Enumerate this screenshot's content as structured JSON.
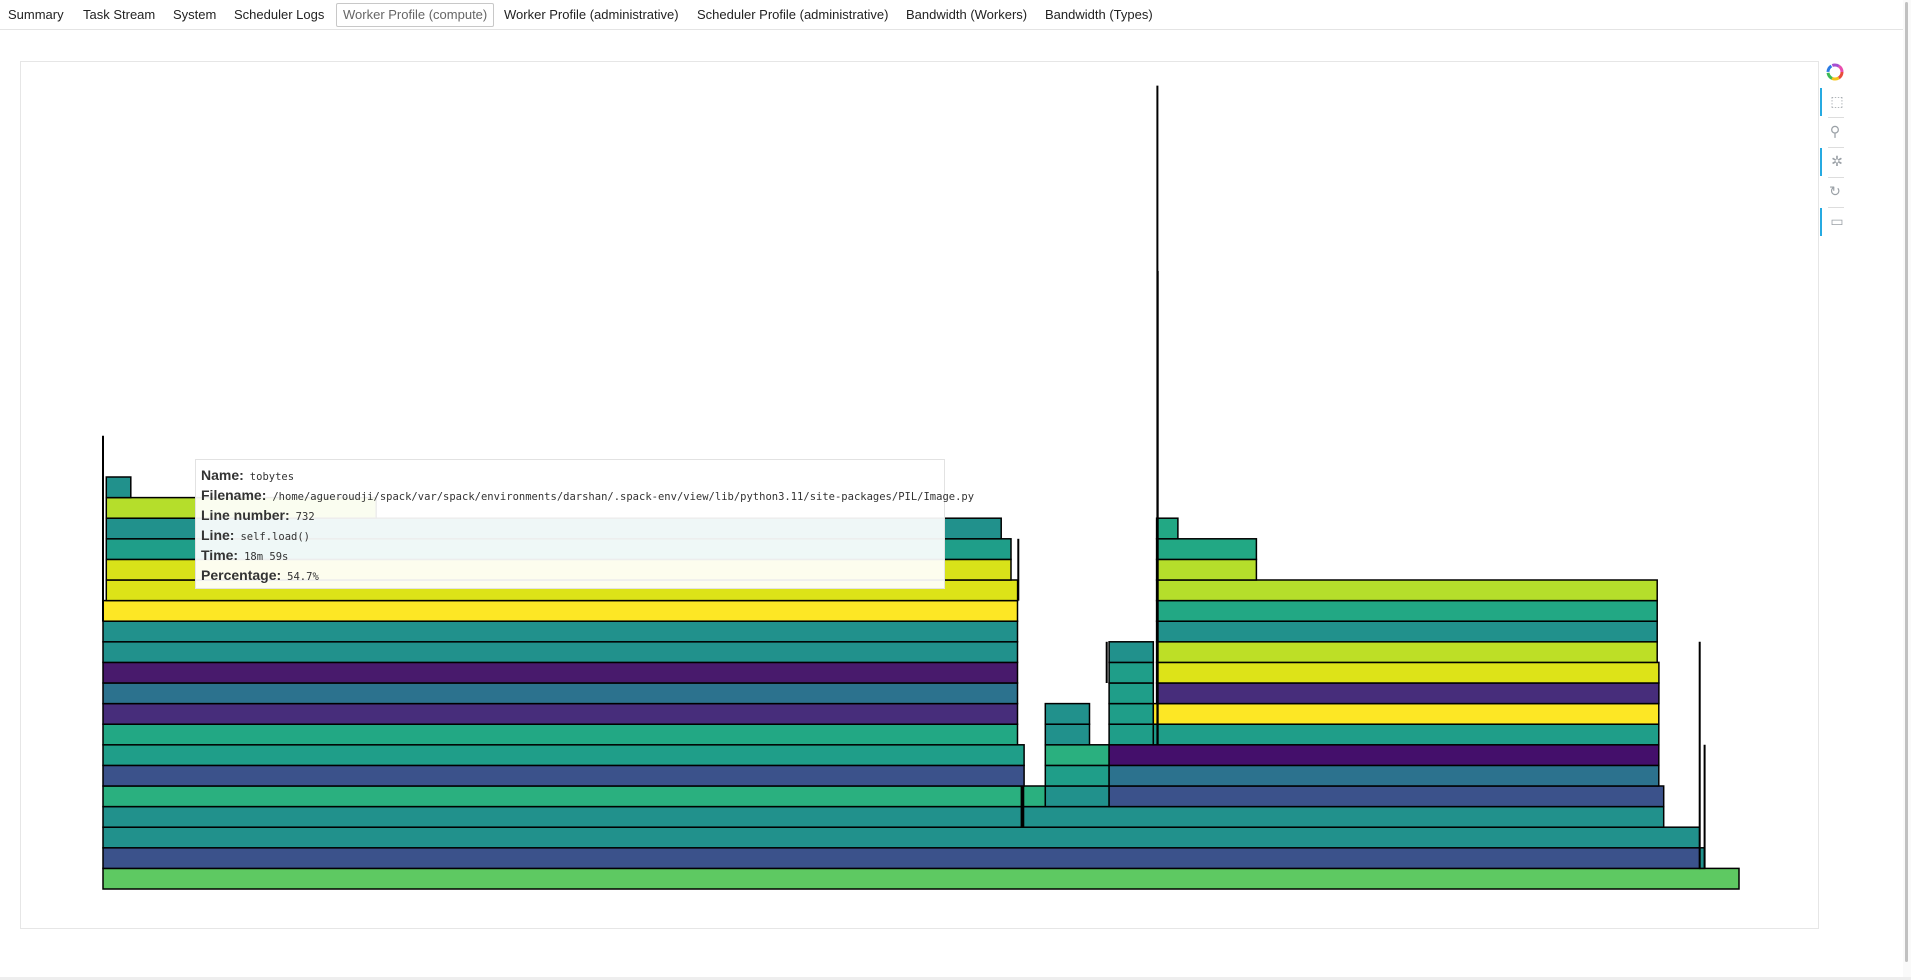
{
  "tabs": [
    {
      "label": "Summary"
    },
    {
      "label": "Task Stream"
    },
    {
      "label": "System"
    },
    {
      "label": "Scheduler Logs"
    },
    {
      "label": "Worker Profile (compute)",
      "active": true
    },
    {
      "label": "Worker Profile (administrative)"
    },
    {
      "label": "Scheduler Profile (administrative)"
    },
    {
      "label": "Bandwidth (Workers)"
    },
    {
      "label": "Bandwidth (Types)"
    }
  ],
  "toolbar": {
    "items": [
      {
        "name": "bokeh-logo-icon",
        "glyph": ""
      },
      {
        "name": "box-zoom-icon",
        "glyph": "⬚",
        "active": true
      },
      {
        "name": "wheel-zoom-icon",
        "glyph": "⚲"
      },
      {
        "name": "tap-icon",
        "glyph": "✲",
        "active": true
      },
      {
        "name": "reset-icon",
        "glyph": "↻"
      },
      {
        "name": "hover-icon",
        "glyph": "▭",
        "active": true
      }
    ]
  },
  "tooltip": {
    "name_label": "Name:",
    "name": "tobytes",
    "filename_label": "Filename:",
    "filename": "/home/agueroudji/spack/var/spack/environments/darshan/.spack-env/view/lib/python3.11/site-packages/PIL/Image.py",
    "line_number_label": "Line number:",
    "line_number": "732",
    "line_label": "Line:",
    "line": "self.load()",
    "time_label": "Time:",
    "time": "18m 59s",
    "percentage_label": "Percentage:",
    "percentage": "54.7%"
  },
  "chart_data": {
    "type": "flamegraph",
    "title": "",
    "xlim": [
      0,
      1
    ],
    "depth_count": 21,
    "palette": [
      "#440154",
      "#482475",
      "#414487",
      "#355f8d",
      "#2a788e",
      "#21918c",
      "#22a884",
      "#44bf70",
      "#7ad151",
      "#bddf26",
      "#fde725"
    ],
    "rects": [
      {
        "d": 0,
        "x0": 0.0,
        "x1": 1.0,
        "c": "#5ec962"
      },
      {
        "d": 1,
        "x0": 0.0,
        "x1": 0.976,
        "c": "#3b528b"
      },
      {
        "d": 1,
        "x0": 0.976,
        "x1": 0.979,
        "c": "#21918c"
      },
      {
        "d": 2,
        "x0": 0.0,
        "x1": 0.976,
        "c": "#21918c"
      },
      {
        "d": 3,
        "x0": 0.0,
        "x1": 0.954,
        "c": "#21918c"
      },
      {
        "d": 4,
        "x0": 0.0,
        "x1": 0.576,
        "c": "#2ab07f"
      },
      {
        "d": 4,
        "x0": 0.576,
        "x1": 0.615,
        "c": "#21918c"
      },
      {
        "d": 4,
        "x0": 0.615,
        "x1": 0.954,
        "c": "#3b528b"
      },
      {
        "d": 5,
        "x0": 0.0,
        "x1": 0.563,
        "c": "#3b528b"
      },
      {
        "d": 5,
        "x0": 0.576,
        "x1": 0.615,
        "c": "#1f9e89"
      },
      {
        "d": 5,
        "x0": 0.615,
        "x1": 0.951,
        "c": "#2c728e"
      },
      {
        "d": 6,
        "x0": 0.0,
        "x1": 0.563,
        "c": "#1f9e89"
      },
      {
        "d": 6,
        "x0": 0.576,
        "x1": 0.615,
        "c": "#2ab07f"
      },
      {
        "d": 6,
        "x0": 0.615,
        "x1": 0.951,
        "c": "#440f6b"
      },
      {
        "d": 7,
        "x0": 0.0,
        "x1": 0.559,
        "c": "#22a884"
      },
      {
        "d": 7,
        "x0": 0.576,
        "x1": 0.603,
        "c": "#21918c"
      },
      {
        "d": 7,
        "x0": 0.615,
        "x1": 0.642,
        "c": "#1f9e89"
      },
      {
        "d": 7,
        "x0": 0.642,
        "x1": 0.951,
        "c": "#1f9e89"
      },
      {
        "d": 8,
        "x0": 0.0,
        "x1": 0.559,
        "c": "#472d7b"
      },
      {
        "d": 8,
        "x0": 0.576,
        "x1": 0.603,
        "c": "#21918c"
      },
      {
        "d": 8,
        "x0": 0.615,
        "x1": 0.642,
        "c": "#1f9e89"
      },
      {
        "d": 8,
        "x0": 0.642,
        "x1": 0.951,
        "c": "#fde725"
      },
      {
        "d": 9,
        "x0": 0.0,
        "x1": 0.559,
        "c": "#2c728e"
      },
      {
        "d": 9,
        "x0": 0.615,
        "x1": 0.642,
        "c": "#1f9e89"
      },
      {
        "d": 9,
        "x0": 0.644,
        "x1": 0.951,
        "c": "#472d7b"
      },
      {
        "d": 10,
        "x0": 0.0,
        "x1": 0.559,
        "c": "#481a6c"
      },
      {
        "d": 10,
        "x0": 0.615,
        "x1": 0.642,
        "c": "#1f9e89"
      },
      {
        "d": 10,
        "x0": 0.644,
        "x1": 0.951,
        "c": "#dde318"
      },
      {
        "d": 11,
        "x0": 0.0,
        "x1": 0.559,
        "c": "#21918c"
      },
      {
        "d": 11,
        "x0": 0.615,
        "x1": 0.642,
        "c": "#21918c"
      },
      {
        "d": 11,
        "x0": 0.644,
        "x1": 0.95,
        "c": "#bddf26"
      },
      {
        "d": 12,
        "x0": 0.0,
        "x1": 0.559,
        "c": "#21918c"
      },
      {
        "d": 12,
        "x0": 0.644,
        "x1": 0.95,
        "c": "#21918c"
      },
      {
        "d": 13,
        "x0": 0.0,
        "x1": 0.559,
        "c": "#fde725"
      },
      {
        "d": 13,
        "x0": 0.644,
        "x1": 0.95,
        "c": "#22a884"
      },
      {
        "d": 14,
        "x0": 0.002,
        "x1": 0.559,
        "c": "#dde318"
      },
      {
        "d": 14,
        "x0": 0.644,
        "x1": 0.95,
        "c": "#b5de2b"
      },
      {
        "d": 15,
        "x0": 0.002,
        "x1": 0.555,
        "c": "#d8e219"
      },
      {
        "d": 15,
        "x0": 0.644,
        "x1": 0.705,
        "c": "#b5de2b"
      },
      {
        "d": 16,
        "x0": 0.002,
        "x1": 0.555,
        "c": "#1f9e89"
      },
      {
        "d": 16,
        "x0": 0.644,
        "x1": 0.705,
        "c": "#22a884"
      },
      {
        "d": 17,
        "x0": 0.002,
        "x1": 0.549,
        "c": "#21918c"
      },
      {
        "d": 17,
        "x0": 0.644,
        "x1": 0.657,
        "c": "#22a884"
      },
      {
        "d": 18,
        "x0": 0.002,
        "x1": 0.167,
        "c": "#b5de2b"
      },
      {
        "d": 19,
        "x0": 0.002,
        "x1": 0.017,
        "c": "#21918c"
      }
    ]
  }
}
